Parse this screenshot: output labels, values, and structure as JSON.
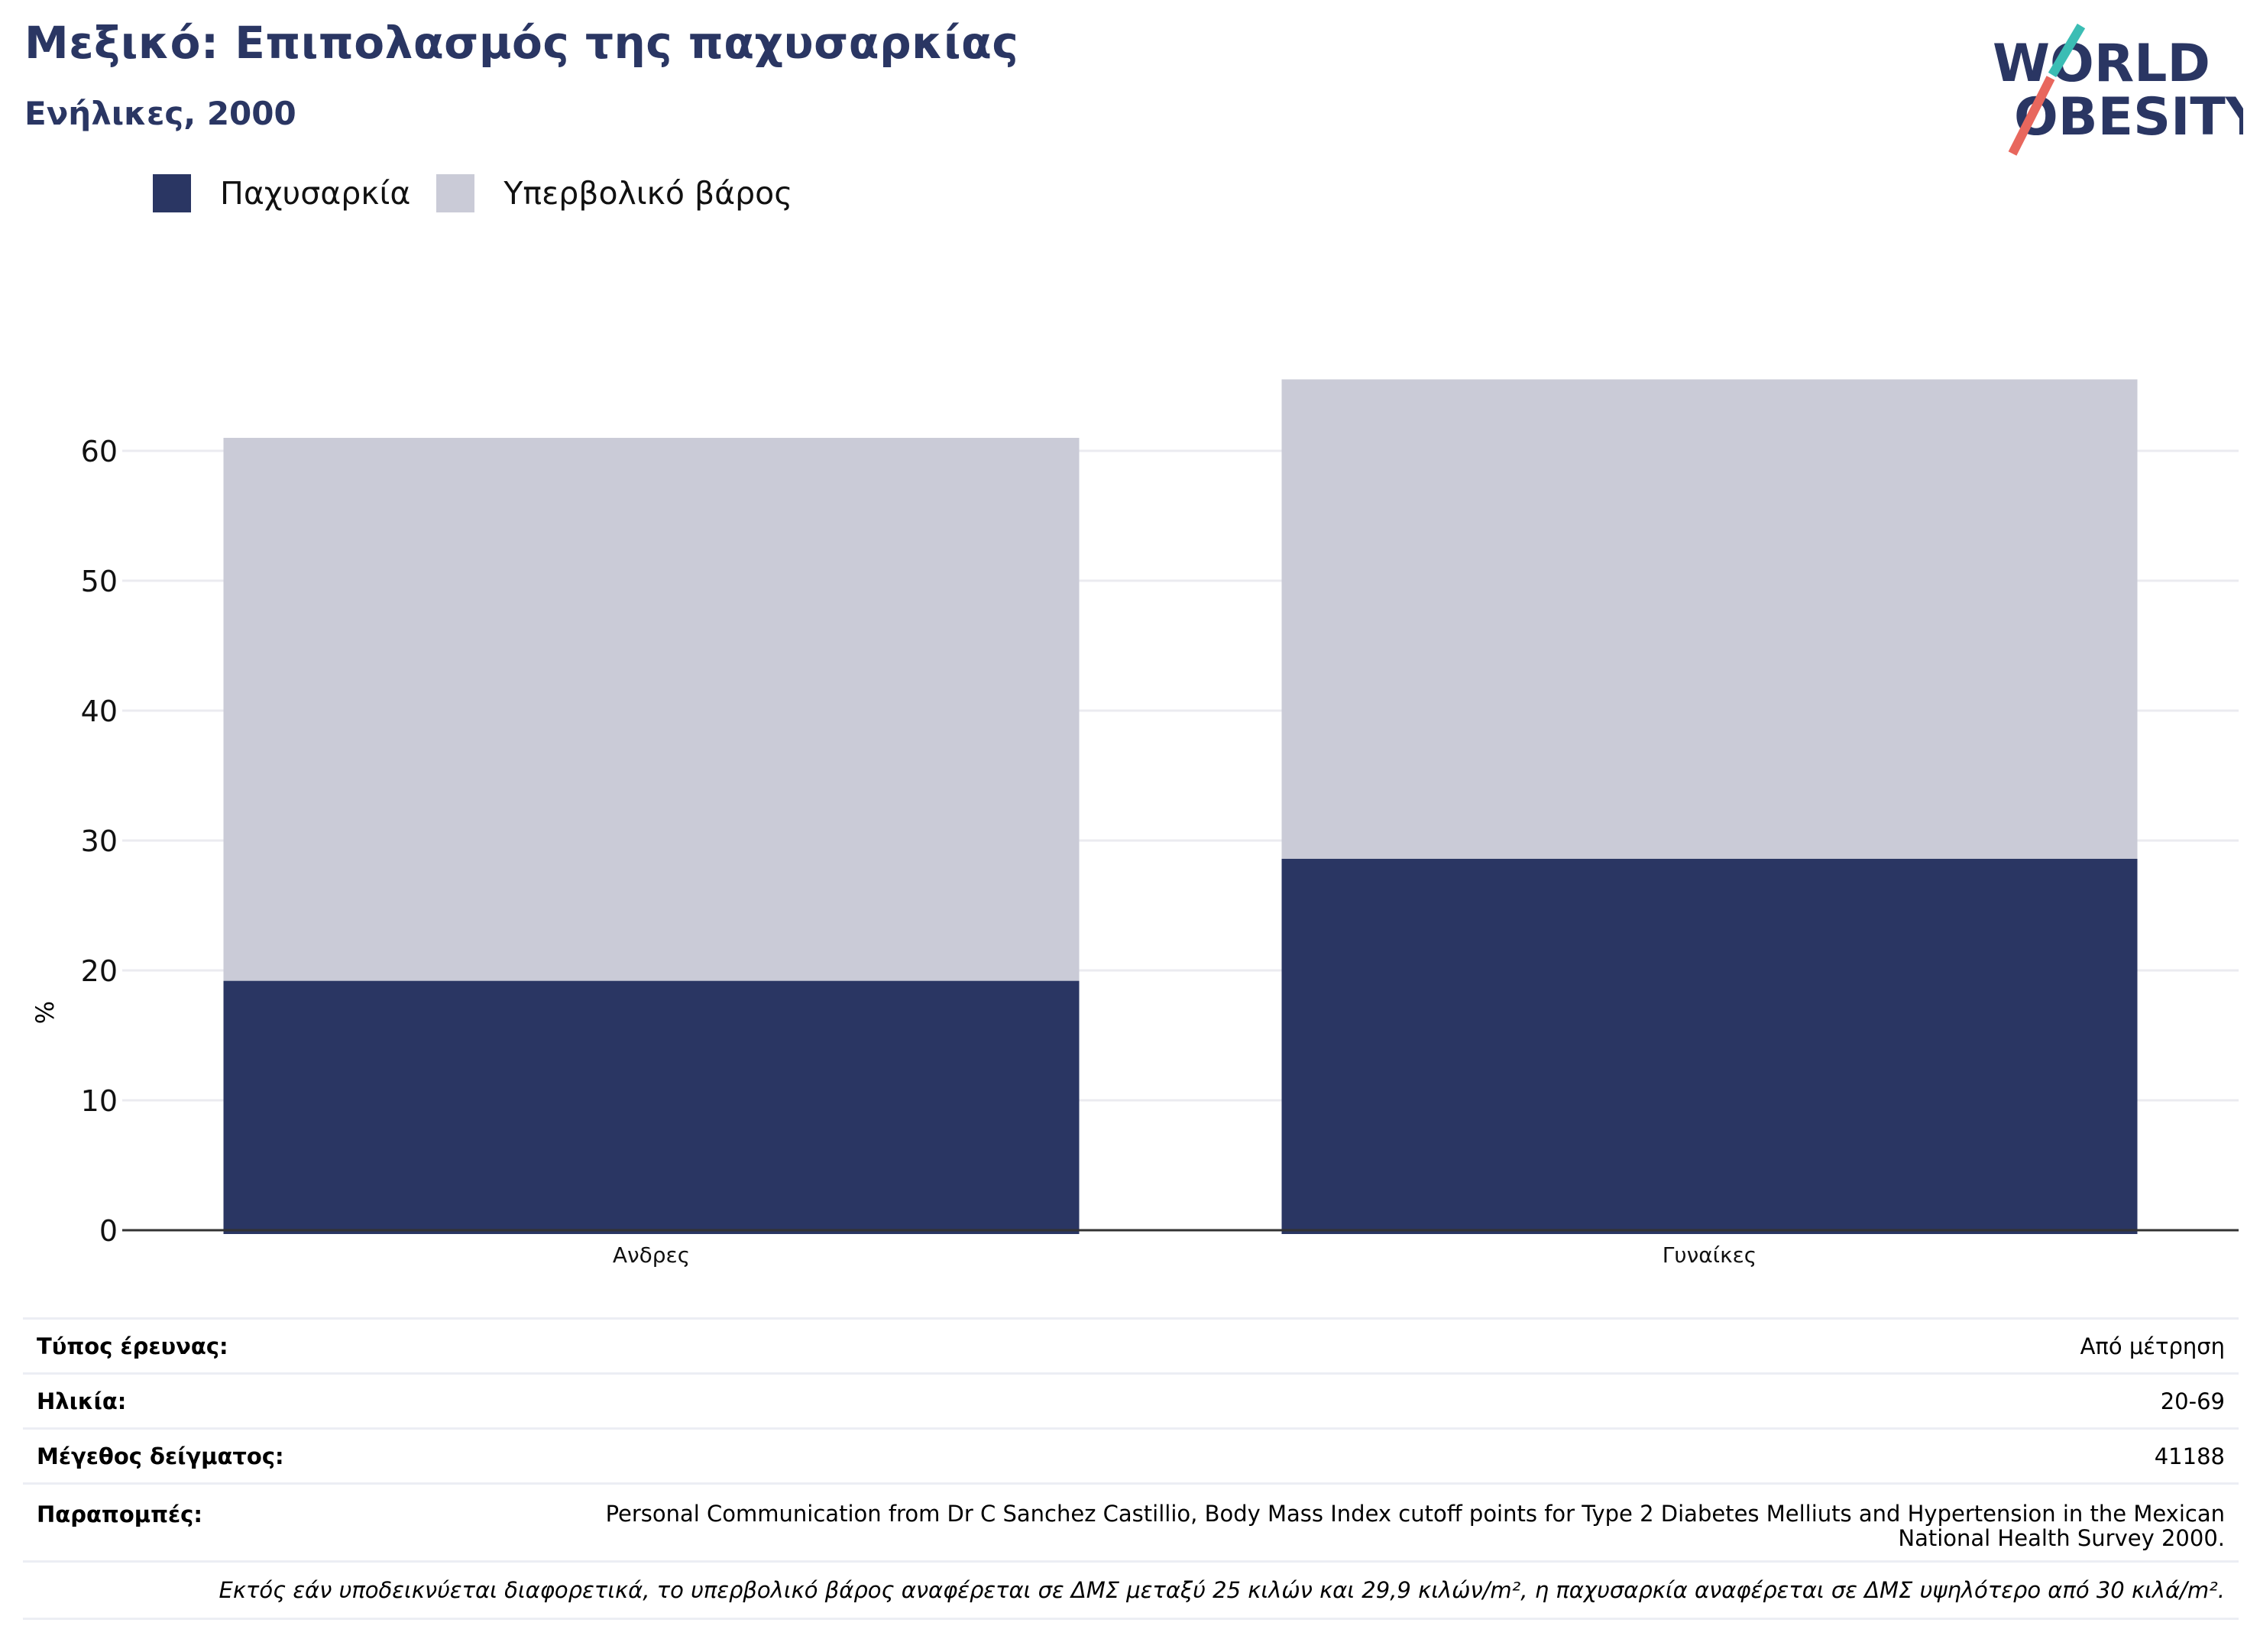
{
  "header": {
    "title": "Μεξικό: Επιπολασμός της παχυσαρκίας",
    "subtitle": "Ενήλικες, 2000"
  },
  "logo": {
    "line1": "WORLD",
    "line2": "OBESITY"
  },
  "legend": [
    {
      "label": "Παχυσαρκία",
      "color": "#2a3663"
    },
    {
      "label": "Υπερβολικό βάρος",
      "color": "#cacbd7"
    }
  ],
  "chart_data": {
    "type": "bar",
    "stacked": true,
    "categories": [
      "Ανδρες",
      "Γυναίκες"
    ],
    "series": [
      {
        "name": "Παχυσαρκία",
        "color": "#2a3663",
        "values": [
          19.2,
          28.6
        ]
      },
      {
        "name": "Υπερβολικό βάρος",
        "color": "#cacbd7",
        "values": [
          41.8,
          36.9
        ]
      }
    ],
    "ylabel": "%",
    "ylim": [
      0,
      70
    ],
    "yticks": [
      0,
      10,
      20,
      30,
      40,
      50,
      60
    ],
    "grid": true,
    "legend_position": "top-left"
  },
  "info": {
    "survey_type_label": "Τύπος έρευνας:",
    "survey_type_value": "Από μέτρηση",
    "age_label": "Ηλικία:",
    "age_value": "20-69",
    "sample_label": "Μέγεθος δείγματος:",
    "sample_value": "41188",
    "refs_label": "Παραπομπές:",
    "refs_value": "Personal Communication from Dr C Sanchez Castillio, Body Mass Index cutoff points for Type 2 Diabetes Melliuts and Hypertension in the Mexican National Health Survey 2000.",
    "note": "Εκτός εάν υποδεικνύεται διαφορετικά, το υπερβολικό βάρος αναφέρεται σε ΔΜΣ μεταξύ 25 κιλών και 29,9 κιλών/m², η παχυσαρκία αναφέρεται σε ΔΜΣ υψηλότερο από 30 κιλά/m²."
  }
}
